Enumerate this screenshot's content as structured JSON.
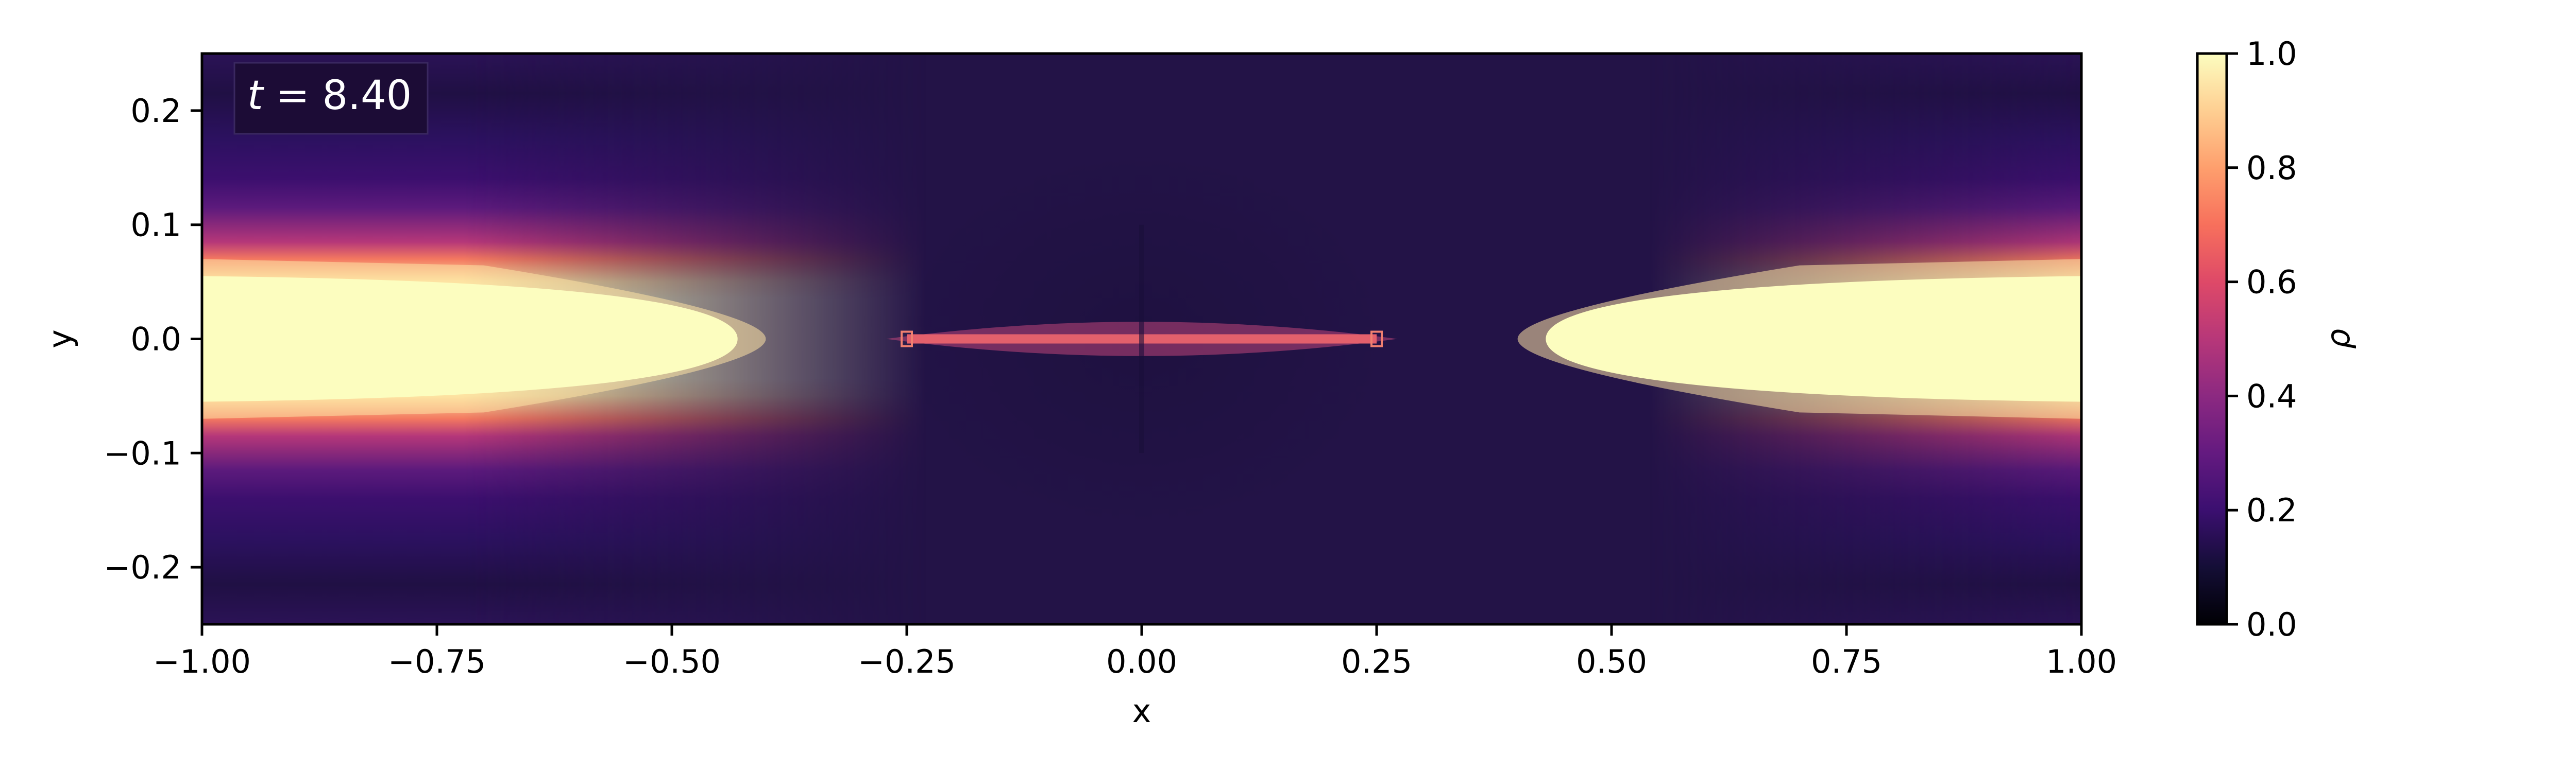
{
  "chart_data": {
    "type": "heatmap",
    "title": "",
    "xlabel": "x",
    "ylabel": "y",
    "xlim": [
      -1.0,
      1.0
    ],
    "ylim": [
      -0.25,
      0.25
    ],
    "xticks": [
      -1.0,
      -0.75,
      -0.5,
      -0.25,
      0.0,
      0.25,
      0.5,
      0.75,
      1.0
    ],
    "xtick_labels": [
      "−1.00",
      "−0.75",
      "−0.50",
      "−0.25",
      "0.00",
      "0.25",
      "0.50",
      "0.75",
      "1.00"
    ],
    "yticks": [
      -0.2,
      -0.1,
      0.0,
      0.1,
      0.2
    ],
    "ytick_labels": [
      "−0.2",
      "−0.1",
      "0.0",
      "0.1",
      "0.2"
    ],
    "annotation": "t = 8.40",
    "colorbar": {
      "label": "ρ",
      "colormap": "magma",
      "vmin": 0.0,
      "vmax": 1.0,
      "ticks": [
        0.0,
        0.2,
        0.4,
        0.6,
        0.8,
        1.0
      ],
      "tick_labels": [
        "0.0",
        "0.2",
        "0.4",
        "0.6",
        "0.8",
        "1.0"
      ]
    },
    "field": {
      "description_values": "approximate density levels",
      "background_density": 0.2,
      "dense_region_density": 1.0,
      "dense_region_half_width_y": 0.07,
      "dense_region_inner_x": 0.4,
      "central_filament_x_range": [
        -0.25,
        0.25
      ],
      "central_filament_density": 0.65
    }
  }
}
